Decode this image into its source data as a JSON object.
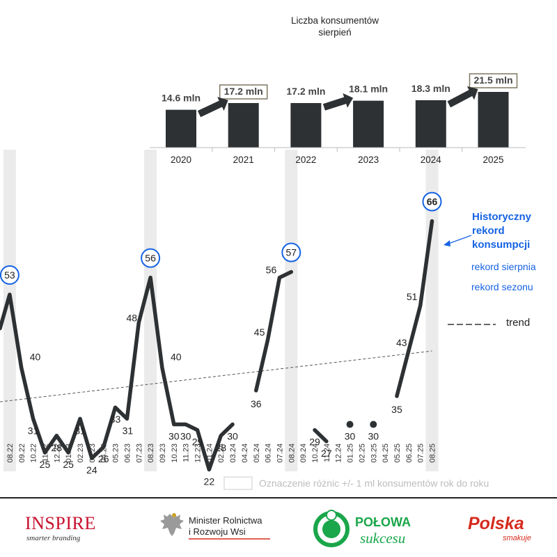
{
  "chart_data": [
    {
      "type": "bar",
      "title": "Liczba konsumentów\nsierpień",
      "categories": [
        "2020",
        "2021",
        "2022",
        "2023",
        "2024",
        "2025"
      ],
      "values": [
        14.6,
        17.2,
        17.2,
        18.1,
        18.3,
        21.5
      ],
      "data_labels": [
        "14.6 mln",
        "17.2 mln",
        "17.2 mln",
        "18.1 mln",
        "18.3 mln",
        "21.5 mln"
      ],
      "boxed_labels": [
        1,
        5
      ],
      "arrows_between": [
        [
          0,
          1
        ],
        [
          2,
          3
        ],
        [
          4,
          5
        ]
      ],
      "bar_color": "#2e3133"
    },
    {
      "type": "line",
      "x": [
        "08.22",
        "09.22",
        "10.22",
        "11.22",
        "12.22",
        "01.23",
        "02.23",
        "03.23",
        "04.23",
        "05.23",
        "06.23",
        "07.23",
        "08.23",
        "09.23",
        "10.23",
        "11.23",
        "12.23",
        "01.24",
        "02.24",
        "03.24",
        "04.24",
        "05.24",
        "06.24",
        "07.24",
        "08.24",
        "09.24",
        "10.24",
        "11.24",
        "12.24",
        "01.25",
        "02.25",
        "03.25",
        "04.25",
        "05.25",
        "06.25",
        "07.25",
        "08.25"
      ],
      "lead_in_value": 47,
      "series": [
        {
          "values": [
            53,
            40,
            31,
            25,
            28,
            25,
            31,
            24,
            26,
            33,
            31,
            48,
            56,
            40,
            30,
            30,
            29,
            22,
            28,
            30,
            null,
            36,
            45,
            56,
            57,
            null,
            29,
            27,
            null,
            30,
            null,
            30,
            null,
            35,
            43,
            51,
            66
          ],
          "color": "#2e3133"
        }
      ],
      "peak_circled": [
        "08.22",
        "08.23",
        "08.24",
        "08.25"
      ],
      "peak_bold": "08.25",
      "shaded_months": [
        "08.22",
        "08.23",
        "08.24",
        "08.25"
      ],
      "trend_start": 34,
      "trend_end": 43,
      "grid": false,
      "legend": {
        "trend": "trend",
        "shading_note": "Oznaczenie różnic +/- 1 ml konsumentów rok do roku"
      },
      "annotations": {
        "record_title": "Historyczny\nrekord\nkonsumpcji",
        "record_august": "rekord sierpnia",
        "record_season": "rekord sezonu"
      }
    }
  ],
  "colors": {
    "bar": "#2e3133",
    "line": "#2e3133",
    "accent_blue": "#1663e3",
    "shading": "#ebebeb",
    "inspire_red": "#c8102e",
    "polowa_green": "#1aa64a",
    "polska_red": "#d52b1e"
  },
  "logos": {
    "inspire_main": "INSPIRE",
    "inspire_sub": "smarter branding",
    "ministry_line1": "Minister Rolnictwa",
    "ministry_line2": "i Rozwoju Wsi",
    "polowa_line1": "POŁOWA",
    "polowa_line2": "sukcesu",
    "polska_line1": "Polska",
    "polska_line2": "smakuje"
  }
}
